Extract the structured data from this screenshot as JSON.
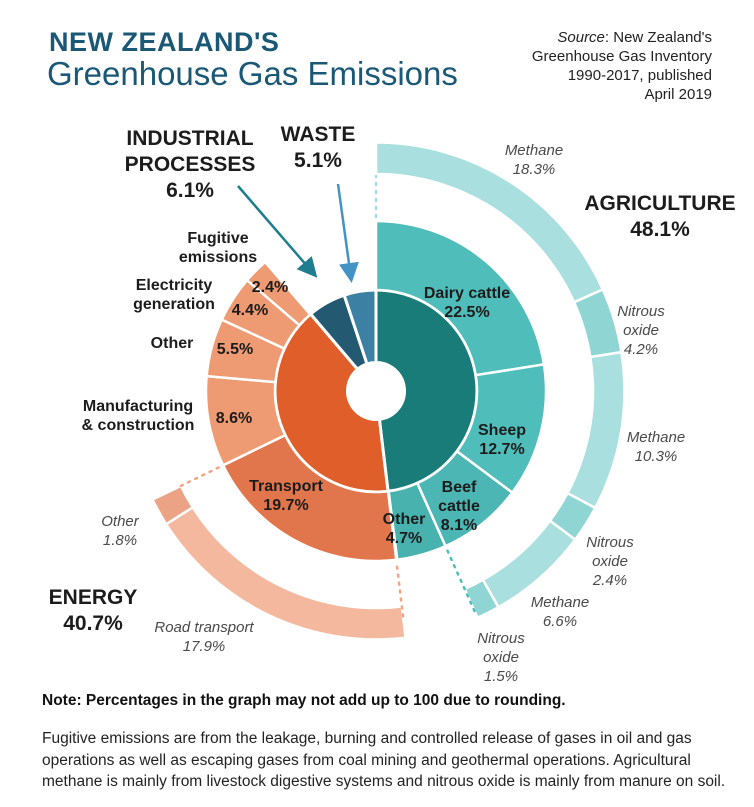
{
  "header": {
    "title_line1": "NEW ZEALAND'S",
    "title_line2": "Greenhouse Gas Emissions",
    "source_prefix": "Source",
    "source_line1_rest": ": New Zealand's",
    "source_line2": "Greenhouse Gas Inventory",
    "source_line3": "1990-2017, published",
    "source_line4": "April 2019"
  },
  "chart_data": {
    "type": "sunburst",
    "unit": "%",
    "rings": [
      "sector (inner)",
      "subsector (middle)",
      "gas / detail (outer)"
    ],
    "sectors": [
      {
        "id": "agriculture",
        "label": "AGRICULTURE",
        "value": 48.1,
        "display": "48.1%",
        "color": "#1a7c78",
        "subsectors": [
          {
            "label": "Dairy cattle",
            "value": 22.5,
            "display": "22.5%",
            "color": "#4fbdba"
          },
          {
            "label": "Sheep",
            "value": 12.7,
            "display": "12.7%",
            "color": "#4fbdba"
          },
          {
            "label": "Beef cattle",
            "value": 8.1,
            "display": "8.1%",
            "color": "#4bb6b3"
          },
          {
            "label": "Other",
            "value": 4.7,
            "display": "4.7%",
            "color": "#48b2af"
          }
        ],
        "outer_start": 0,
        "outer": [
          {
            "label": "Methane",
            "value": 18.3,
            "display": "18.3%",
            "color": "#a9e0df"
          },
          {
            "label": "Nitrous oxide",
            "value": 4.2,
            "display": "4.2%",
            "color": "#8ed5d3"
          },
          {
            "label": "Methane",
            "value": 10.3,
            "display": "10.3%",
            "color": "#a9e0df"
          },
          {
            "label": "Nitrous oxide",
            "value": 2.4,
            "display": "2.4%",
            "color": "#8ed5d3"
          },
          {
            "label": "Methane",
            "value": 6.6,
            "display": "6.6%",
            "color": "#a9e0df"
          },
          {
            "label": "Nitrous oxide",
            "value": 1.5,
            "display": "1.5%",
            "color": "#8ed5d3"
          }
        ]
      },
      {
        "id": "energy",
        "label": "ENERGY",
        "value": 40.7,
        "display": "40.7%",
        "color": "#df5e29",
        "subsectors": [
          {
            "label": "Transport",
            "value": 19.7,
            "display": "19.7%",
            "color": "#e1754b"
          },
          {
            "label": "Manufacturing & construction",
            "value": 8.6,
            "display": "8.6%",
            "color": "#ee9a72"
          },
          {
            "label": "Other",
            "value": 5.5,
            "display": "5.5%",
            "color": "#ee9a72"
          },
          {
            "label": "Electricity generation",
            "value": 4.4,
            "display": "4.4%",
            "color": "#ee9a72"
          },
          {
            "label": "Fugitive emissions",
            "value": 2.4,
            "display": "2.4%",
            "color": "#ee9a72"
          }
        ],
        "outer_start": 48.1,
        "outer": [
          {
            "label": "Road transport",
            "value": 17.9,
            "display": "17.9%",
            "color": "#f3b89e"
          },
          {
            "label": "Other",
            "value": 1.8,
            "display": "1.8%",
            "color": "#eca284"
          }
        ]
      },
      {
        "id": "industrial-processes",
        "label": "INDUSTRIAL PROCESSES",
        "value": 6.1,
        "display": "6.1%",
        "color": "#235a72",
        "subsectors": [],
        "outer_start": 0,
        "outer": []
      },
      {
        "id": "waste",
        "label": "WASTE",
        "value": 5.1,
        "display": "5.1%",
        "color": "#3c80a4",
        "subsectors": [],
        "outer_start": 0,
        "outer": []
      }
    ],
    "accents": {
      "industrial_arrow": "#1e7d8f",
      "waste_arrow": "#4493c6",
      "dash_teal_light": "#a8dfde",
      "dash_teal": "#4fbdba",
      "dash_orange": "#f2a584"
    }
  },
  "footer": {
    "note": "Note: Percentages in the graph may not add up to 100 due to rounding.",
    "paragraph": "Fugitive emissions are from the leakage, burning and controlled release of gases in oil and gas operations as well as escaping gases from coal mining and geothermal operations. Agricultural methane is mainly from livestock digestive systems and nitrous oxide is mainly from manure on soil."
  }
}
